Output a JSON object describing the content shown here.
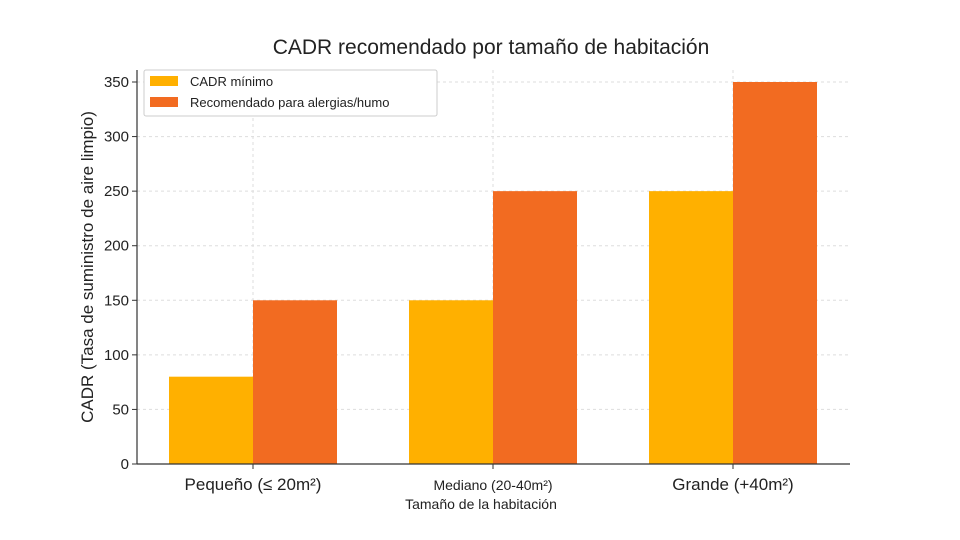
{
  "chart_data": {
    "type": "bar",
    "title": "CADR recomendado por tamaño de habitación",
    "xlabel": "Tamaño de la habitación",
    "ylabel": "CADR (Tasa de suministro de aire limpio)",
    "categories": [
      "Pequeño (≤ 20m²)",
      "Mediano (20-40m²)",
      "Grande (+40m²)"
    ],
    "series": [
      {
        "name": "CADR mínimo",
        "values": [
          80,
          150,
          250
        ],
        "color": "#FFB000"
      },
      {
        "name": "Recomendado para alergias/humo",
        "values": [
          150,
          250,
          350
        ],
        "color": "#F26B21"
      }
    ],
    "ylim": [
      0,
      350
    ],
    "yticks": [
      0,
      50,
      100,
      150,
      200,
      250,
      300,
      350
    ],
    "grid": true,
    "legend": "top-left"
  }
}
